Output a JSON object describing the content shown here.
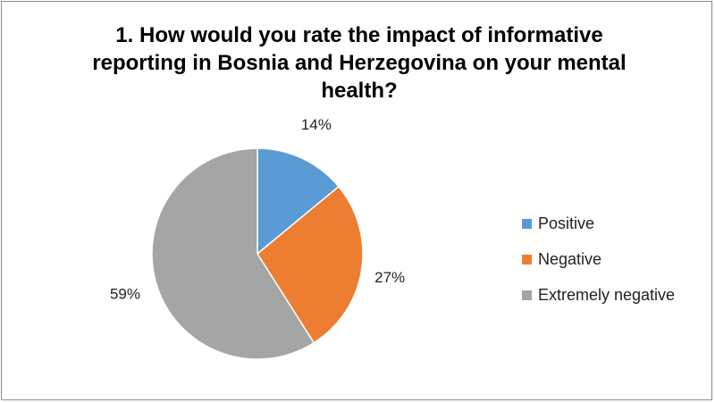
{
  "chart_data": {
    "type": "pie",
    "title": "1. How would you rate the impact of informative reporting in Bosnia and Herzegovina on your mental health?",
    "categories": [
      "Positive",
      "Negative",
      "Extremely negative"
    ],
    "values": [
      14,
      27,
      59
    ],
    "data_labels": [
      "14%",
      "27%",
      "59%"
    ],
    "colors": [
      "#5b9bd5",
      "#ed7d31",
      "#a5a5a5"
    ],
    "legend_position": "right"
  }
}
